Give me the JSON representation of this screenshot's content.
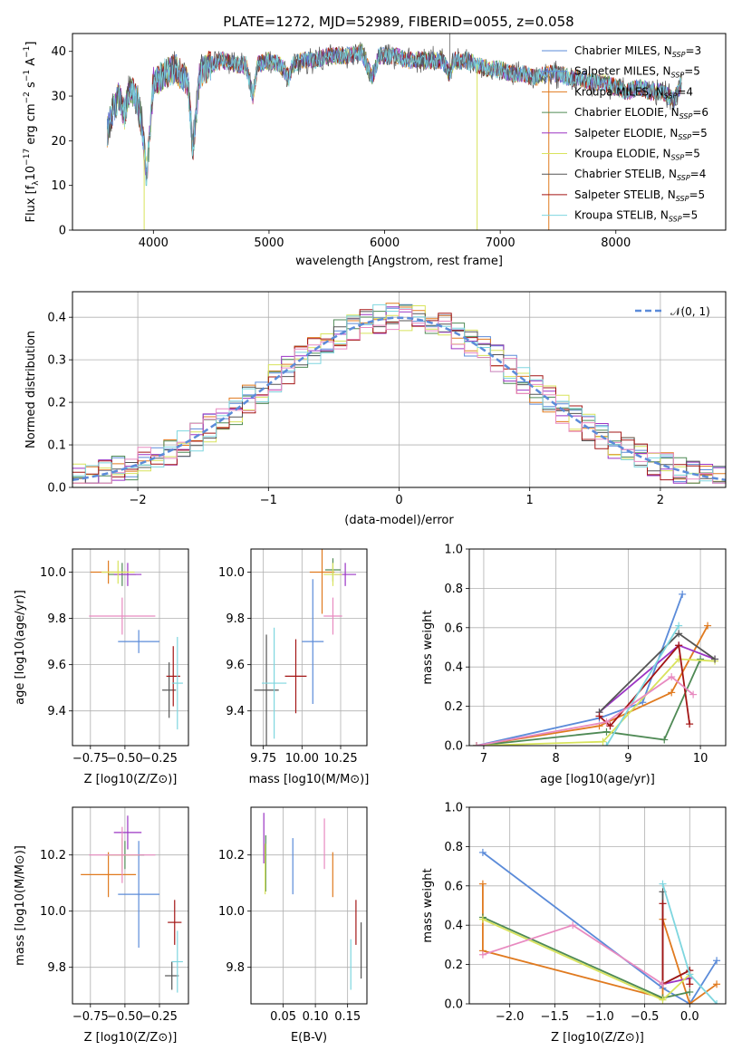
{
  "figure": {
    "title": "PLATE=1272, MJD=52989, FIBERID=0055, z=0.058",
    "colors": {
      "blue": "#5b8bd9",
      "orange": "#e07a1f",
      "green": "#4f8a55",
      "purple": "#9b35c4",
      "yellow": "#d8e35c",
      "gray": "#555555",
      "red": "#a31515",
      "cyan": "#7ed6df",
      "pink": "#e88ac0"
    }
  },
  "chart_data": [
    {
      "id": "spectrum",
      "type": "line",
      "title": "PLATE=1272, MJD=52989, FIBERID=0055, z=0.058",
      "xlabel": "wavelength [Angstrom, rest frame]",
      "ylabel_parts": [
        "Flux [f",
        "λ",
        "10",
        "−17",
        " erg cm",
        "−2",
        " s",
        "−1",
        " A",
        "−1",
        "]"
      ],
      "xlim": [
        3300,
        8950
      ],
      "ylim": [
        0,
        44
      ],
      "xticks": [
        "4000",
        "5000",
        "6000",
        "7000",
        "8000"
      ],
      "yticks": [
        "0",
        "10",
        "20",
        "30",
        "40"
      ],
      "legend": [
        {
          "name": "Chabrier MILES, N",
          "sub": "SSP",
          "suffix": "=3",
          "color": "#5b8bd9"
        },
        {
          "name": "Salpeter MILES, N",
          "sub": "SSP",
          "suffix": "=5",
          "color": "#5b8bd9"
        },
        {
          "name": "Kroupa MILES, N",
          "sub": "SSP",
          "suffix": "=4",
          "color": "#e07a1f"
        },
        {
          "name": "Chabrier ELODIE, N",
          "sub": "SSP",
          "suffix": "=6",
          "color": "#4f8a55"
        },
        {
          "name": "Salpeter ELODIE, N",
          "sub": "SSP",
          "suffix": "=5",
          "color": "#9b35c4"
        },
        {
          "name": "Kroupa ELODIE, N",
          "sub": "SSP",
          "suffix": "=5",
          "color": "#d8e35c"
        },
        {
          "name": "Chabrier STELIB, N",
          "sub": "SSP",
          "suffix": "=4",
          "color": "#555555"
        },
        {
          "name": "Salpeter STELIB, N",
          "sub": "SSP",
          "suffix": "=5",
          "color": "#a31515"
        },
        {
          "name": "Kroupa STELIB, N",
          "sub": "SSP",
          "suffix": "=5",
          "color": "#7ed6df"
        }
      ],
      "trace": [
        [
          3600,
          22
        ],
        [
          3650,
          27
        ],
        [
          3700,
          30
        ],
        [
          3750,
          26
        ],
        [
          3800,
          32
        ],
        [
          3850,
          30
        ],
        [
          3900,
          24
        ],
        [
          3940,
          12
        ],
        [
          3970,
          22
        ],
        [
          4000,
          33
        ],
        [
          4100,
          35
        ],
        [
          4200,
          36
        ],
        [
          4300,
          33
        ],
        [
          4340,
          18
        ],
        [
          4400,
          35
        ],
        [
          4500,
          37
        ],
        [
          4600,
          38
        ],
        [
          4700,
          37
        ],
        [
          4800,
          37
        ],
        [
          4860,
          30
        ],
        [
          4900,
          37
        ],
        [
          5000,
          38
        ],
        [
          5100,
          37
        ],
        [
          5175,
          34
        ],
        [
          5200,
          37
        ],
        [
          5300,
          38
        ],
        [
          5400,
          38
        ],
        [
          5500,
          39
        ],
        [
          5600,
          39
        ],
        [
          5700,
          39
        ],
        [
          5800,
          40
        ],
        [
          5890,
          34
        ],
        [
          5950,
          39
        ],
        [
          6000,
          39
        ],
        [
          6100,
          39
        ],
        [
          6200,
          38
        ],
        [
          6300,
          38
        ],
        [
          6400,
          38
        ],
        [
          6500,
          38
        ],
        [
          6563,
          35
        ],
        [
          6600,
          38
        ],
        [
          6700,
          38
        ],
        [
          6800,
          37
        ],
        [
          6900,
          36
        ],
        [
          7000,
          36
        ],
        [
          7100,
          35
        ],
        [
          7200,
          35
        ],
        [
          7300,
          34
        ],
        [
          7400,
          35
        ],
        [
          7500,
          35
        ],
        [
          7600,
          34
        ],
        [
          7700,
          34
        ],
        [
          7800,
          33
        ],
        [
          7900,
          33
        ],
        [
          8000,
          32
        ],
        [
          8100,
          31
        ],
        [
          8200,
          32
        ],
        [
          8300,
          31
        ],
        [
          8400,
          31
        ],
        [
          8500,
          29
        ],
        [
          8570,
          33
        ]
      ],
      "spikes": [
        {
          "x": 3920,
          "y": 0,
          "color": "#d8e35c"
        },
        {
          "x": 6800,
          "y": 0,
          "color": "#d8e35c"
        },
        {
          "x": 7420,
          "y": 0,
          "color": "#e07a1f"
        }
      ]
    },
    {
      "id": "residuals",
      "type": "histogram",
      "xlabel": "(data-model)/error",
      "ylabel": "Normed distribution",
      "xlim": [
        -2.5,
        2.5
      ],
      "ylim": [
        0,
        0.46
      ],
      "xticks": [
        "−2",
        "−1",
        "0",
        "1",
        "2"
      ],
      "yticks": [
        "0.0",
        "0.1",
        "0.2",
        "0.3",
        "0.4"
      ],
      "legend": "𝒩(0, 1)",
      "bin_width": 0.1
    },
    {
      "id": "age_vs_Z",
      "type": "scatter",
      "xlabel": "Z [log10(Z/Z⊙)]",
      "ylabel": "age  [log10(age/yr)]",
      "xlim": [
        -0.88,
        -0.04
      ],
      "ylim": [
        9.25,
        10.1
      ],
      "xticks": [
        "−0.75",
        "−0.50",
        "−0.25"
      ],
      "yticks": [
        "9.4",
        "9.6",
        "9.8",
        "10.0"
      ],
      "points": [
        {
          "x": -0.4,
          "y": 9.7,
          "xerr": 0.15,
          "yerr": 0.05,
          "color": "#5b8bd9"
        },
        {
          "x": -0.62,
          "y": 10.0,
          "xerr": 0.13,
          "yerr": 0.05,
          "color": "#e07a1f"
        },
        {
          "x": -0.52,
          "y": 9.99,
          "xerr": 0.1,
          "yerr": 0.05,
          "color": "#4f8a55"
        },
        {
          "x": -0.48,
          "y": 9.99,
          "xerr": 0.1,
          "yerr": 0.05,
          "color": "#9b35c4"
        },
        {
          "x": -0.55,
          "y": 10.0,
          "xerr": 0.12,
          "yerr": 0.05,
          "color": "#d8e35c"
        },
        {
          "x": -0.18,
          "y": 9.49,
          "xerr": 0.05,
          "yerr": 0.12,
          "color": "#555555"
        },
        {
          "x": -0.15,
          "y": 9.55,
          "xerr": 0.05,
          "yerr": 0.13,
          "color": "#a31515"
        },
        {
          "x": -0.12,
          "y": 9.52,
          "xerr": 0.04,
          "yerr": 0.2,
          "color": "#7ed6df"
        },
        {
          "x": -0.52,
          "y": 9.81,
          "xerr": 0.24,
          "yerr": 0.08,
          "color": "#e88ac0"
        }
      ]
    },
    {
      "id": "age_vs_mass",
      "type": "scatter",
      "xlabel": "mass [log10(M/M⊙)]",
      "ylabel": "",
      "xlim": [
        9.67,
        10.42
      ],
      "ylim": [
        9.25,
        10.1
      ],
      "xticks": [
        "9.75",
        "10.00",
        "10.25"
      ],
      "yticks": [
        "9.4",
        "9.6",
        "9.8",
        "10.0"
      ],
      "points": [
        {
          "x": 10.07,
          "y": 9.7,
          "xerr": 0.07,
          "yerr": 0.27,
          "color": "#5b8bd9"
        },
        {
          "x": 10.13,
          "y": 10.0,
          "xerr": 0.08,
          "yerr": 0.18,
          "color": "#e07a1f"
        },
        {
          "x": 10.2,
          "y": 10.01,
          "xerr": 0.05,
          "yerr": 0.05,
          "color": "#4f8a55"
        },
        {
          "x": 10.28,
          "y": 9.99,
          "xerr": 0.07,
          "yerr": 0.05,
          "color": "#9b35c4"
        },
        {
          "x": 10.2,
          "y": 9.99,
          "xerr": 0.06,
          "yerr": 0.05,
          "color": "#d8e35c"
        },
        {
          "x": 9.77,
          "y": 9.49,
          "xerr": 0.08,
          "yerr": 0.24,
          "color": "#555555"
        },
        {
          "x": 9.96,
          "y": 9.55,
          "xerr": 0.07,
          "yerr": 0.16,
          "color": "#a31515"
        },
        {
          "x": 9.82,
          "y": 9.52,
          "xerr": 0.08,
          "yerr": 0.24,
          "color": "#7ed6df"
        },
        {
          "x": 10.2,
          "y": 9.81,
          "xerr": 0.06,
          "yerr": 0.08,
          "color": "#e88ac0"
        }
      ]
    },
    {
      "id": "weight_vs_age",
      "type": "line",
      "xlabel": "age  [log10(age/yr)]",
      "ylabel": "mass weight",
      "xlim": [
        6.8,
        10.35
      ],
      "ylim": [
        0,
        1
      ],
      "xticks": [
        "7",
        "8",
        "9",
        "10"
      ],
      "yticks": [
        "0.0",
        "0.2",
        "0.4",
        "0.6",
        "0.8",
        "1.0"
      ],
      "series": [
        {
          "color": "#5b8bd9",
          "x": [
            6.9,
            8.6,
            9.2,
            9.75
          ],
          "y": [
            0.0,
            0.14,
            0.22,
            0.77
          ]
        },
        {
          "color": "#e07a1f",
          "x": [
            6.9,
            8.6,
            9.6,
            10.1
          ],
          "y": [
            0.0,
            0.1,
            0.27,
            0.61
          ]
        },
        {
          "color": "#4f8a55",
          "x": [
            6.9,
            8.7,
            9.5,
            10.0
          ],
          "y": [
            0.0,
            0.07,
            0.03,
            0.44
          ]
        },
        {
          "color": "#9b35c4",
          "x": [
            8.6,
            9.7,
            10.2
          ],
          "y": [
            0.17,
            0.51,
            0.44
          ]
        },
        {
          "color": "#d8e35c",
          "x": [
            6.9,
            8.65,
            9.7,
            10.2
          ],
          "y": [
            0.0,
            0.02,
            0.44,
            0.43
          ]
        },
        {
          "color": "#555555",
          "x": [
            8.6,
            9.7,
            10.2
          ],
          "y": [
            0.17,
            0.57,
            0.44
          ]
        },
        {
          "color": "#a31515",
          "x": [
            8.6,
            8.75,
            9.7,
            9.85
          ],
          "y": [
            0.15,
            0.1,
            0.51,
            0.11
          ]
        },
        {
          "color": "#7ed6df",
          "x": [
            8.7,
            9.7
          ],
          "y": [
            0.0,
            0.61
          ]
        },
        {
          "color": "#e88ac0",
          "x": [
            6.9,
            8.7,
            9.6,
            9.9
          ],
          "y": [
            0.0,
            0.12,
            0.35,
            0.26
          ]
        }
      ]
    },
    {
      "id": "mass_vs_Z",
      "type": "scatter",
      "xlabel": "Z [log10(Z/Z⊙)]",
      "ylabel": "mass [log10(M/M⊙)]",
      "xlim": [
        -0.88,
        -0.04
      ],
      "ylim": [
        9.67,
        10.37
      ],
      "xticks": [
        "−0.75",
        "−0.50",
        "−0.25"
      ],
      "yticks": [
        "9.8",
        "10.0",
        "10.2"
      ],
      "points": [
        {
          "x": -0.4,
          "y": 10.06,
          "xerr": 0.15,
          "yerr": 0.19,
          "color": "#5b8bd9"
        },
        {
          "x": -0.62,
          "y": 10.13,
          "xerr": 0.2,
          "yerr": 0.08,
          "color": "#e07a1f"
        },
        {
          "x": -0.5,
          "y": 10.2,
          "xerr": 0.14,
          "yerr": 0.05,
          "color": "#4f8a55"
        },
        {
          "x": -0.48,
          "y": 10.28,
          "xerr": 0.1,
          "yerr": 0.06,
          "color": "#9b35c4"
        },
        {
          "x": -0.52,
          "y": 10.2,
          "xerr": 0.12,
          "yerr": 0.06,
          "color": "#d8e35c"
        },
        {
          "x": -0.16,
          "y": 9.77,
          "xerr": 0.05,
          "yerr": 0.05,
          "color": "#555555"
        },
        {
          "x": -0.14,
          "y": 9.96,
          "xerr": 0.05,
          "yerr": 0.08,
          "color": "#a31515"
        },
        {
          "x": -0.12,
          "y": 9.82,
          "xerr": 0.04,
          "yerr": 0.11,
          "color": "#7ed6df"
        },
        {
          "x": -0.52,
          "y": 10.2,
          "xerr": 0.24,
          "yerr": 0.1,
          "color": "#e88ac0"
        }
      ]
    },
    {
      "id": "mass_vs_ebv",
      "type": "scatter",
      "xlabel": "E(B-V)",
      "ylabel": "",
      "xlim": [
        0.0,
        0.18
      ],
      "ylim": [
        9.67,
        10.37
      ],
      "xticks": [
        "0.05",
        "0.10",
        "0.15"
      ],
      "yticks": [
        "9.8",
        "10.0",
        "10.2"
      ],
      "points": [
        {
          "x": 0.065,
          "y": 10.16,
          "xerr": 0,
          "yerr": 0.1,
          "color": "#5b8bd9"
        },
        {
          "x": 0.127,
          "y": 10.13,
          "xerr": 0,
          "yerr": 0.08,
          "color": "#e07a1f"
        },
        {
          "x": 0.023,
          "y": 10.17,
          "xerr": 0,
          "yerr": 0.1,
          "color": "#4f8a55"
        },
        {
          "x": 0.02,
          "y": 10.26,
          "xerr": 0,
          "yerr": 0.09,
          "color": "#9b35c4"
        },
        {
          "x": 0.022,
          "y": 10.15,
          "xerr": 0,
          "yerr": 0.09,
          "color": "#d8e35c"
        },
        {
          "x": 0.171,
          "y": 9.86,
          "xerr": 0,
          "yerr": 0.1,
          "color": "#555555"
        },
        {
          "x": 0.163,
          "y": 9.96,
          "xerr": 0,
          "yerr": 0.08,
          "color": "#a31515"
        },
        {
          "x": 0.155,
          "y": 9.81,
          "xerr": 0,
          "yerr": 0.09,
          "color": "#7ed6df"
        },
        {
          "x": 0.114,
          "y": 10.24,
          "xerr": 0,
          "yerr": 0.09,
          "color": "#e88ac0"
        }
      ]
    },
    {
      "id": "weight_vs_Z",
      "type": "line",
      "xlabel": "Z [log10(Z/Z⊙)]",
      "ylabel": "mass weight",
      "xlim": [
        -2.45,
        0.4
      ],
      "ylim": [
        0,
        1
      ],
      "xticks": [
        "−2.0",
        "−1.5",
        "−1.0",
        "−0.5",
        "0.0"
      ],
      "yticks": [
        "0.0",
        "0.2",
        "0.4",
        "0.6",
        "0.8",
        "1.0"
      ],
      "series": [
        {
          "color": "#5b8bd9",
          "x": [
            -2.3,
            -0.3,
            0.0,
            0.3
          ],
          "y": [
            0.77,
            0.08,
            0.0,
            0.22
          ]
        },
        {
          "color": "#e07a1f",
          "x": [
            -2.3,
            -2.3,
            -0.3,
            -0.3,
            0.0,
            0.3
          ],
          "y": [
            0.61,
            0.27,
            0.03,
            0.43,
            0.0,
            0.1
          ]
        },
        {
          "color": "#4f8a55",
          "x": [
            -2.3,
            -0.3,
            0.0
          ],
          "y": [
            0.44,
            0.03,
            0.06
          ]
        },
        {
          "color": "#9b35c4",
          "x": [
            -0.3,
            0.0
          ],
          "y": [
            0.1,
            0.13
          ]
        },
        {
          "color": "#d8e35c",
          "x": [
            -2.3,
            -0.3,
            0.0
          ],
          "y": [
            0.43,
            0.02,
            0.15
          ]
        },
        {
          "color": "#555555",
          "x": [
            -0.3,
            -0.3,
            0.0
          ],
          "y": [
            0.57,
            0.1,
            0.17
          ]
        },
        {
          "color": "#a31515",
          "x": [
            -0.3,
            -0.3,
            0.0,
            0.0
          ],
          "y": [
            0.51,
            0.1,
            0.17,
            0.1
          ]
        },
        {
          "color": "#7ed6df",
          "x": [
            -0.3,
            0.0,
            0.3
          ],
          "y": [
            0.61,
            0.15,
            0.0
          ]
        },
        {
          "color": "#e88ac0",
          "x": [
            -2.3,
            -1.3,
            -0.3
          ],
          "y": [
            0.25,
            0.4,
            0.1
          ]
        }
      ]
    }
  ]
}
